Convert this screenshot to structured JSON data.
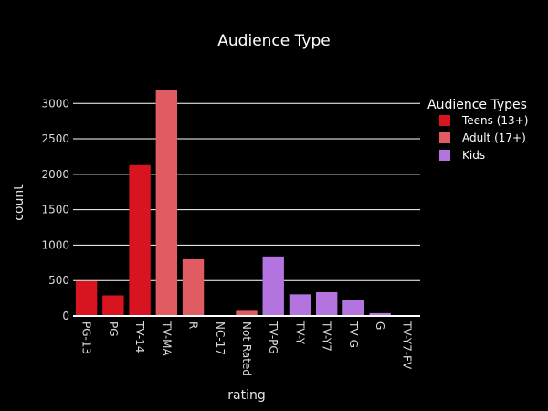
{
  "chart_data": {
    "type": "bar",
    "title": "Audience Type",
    "xlabel": "rating",
    "ylabel": "count",
    "ylim": [
      0,
      3300
    ],
    "yticks": [
      0,
      500,
      1000,
      1500,
      2000,
      2500,
      3000
    ],
    "grid": true,
    "legend": {
      "title": "Audience Types",
      "placement": "right",
      "entries": [
        {
          "label": "Teens (13+)",
          "color": "#d7141f"
        },
        {
          "label": "Adult (17+)",
          "color": "#e05c62"
        },
        {
          "label": "Kids",
          "color": "#b374e0"
        }
      ]
    },
    "categories": [
      "PG-13",
      "PG",
      "TV-14",
      "TV-MA",
      "R",
      "NC-17",
      "Not Rated",
      "TV-PG",
      "TV-Y",
      "TV-Y7",
      "TV-G",
      "G",
      "TV-Y7-FV"
    ],
    "values": [
      490,
      290,
      2130,
      3190,
      800,
      3,
      85,
      840,
      305,
      335,
      220,
      40,
      5
    ],
    "groups": [
      "Teens (13+)",
      "Teens (13+)",
      "Teens (13+)",
      "Adult (17+)",
      "Adult (17+)",
      "Adult (17+)",
      "Adult (17+)",
      "Kids",
      "Kids",
      "Kids",
      "Kids",
      "Kids",
      "Kids"
    ]
  }
}
